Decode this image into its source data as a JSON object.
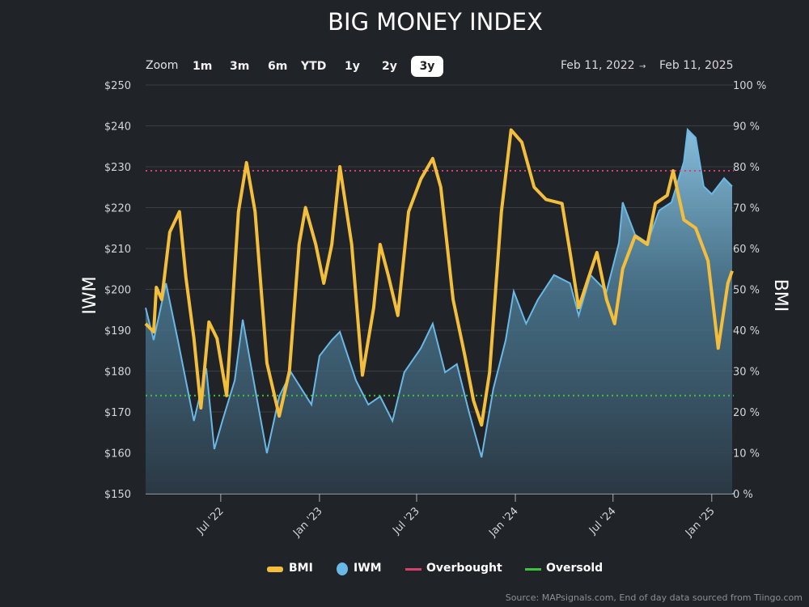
{
  "chart_data": {
    "type": "line",
    "title": "BIG MONEY INDEX",
    "xlabel": "",
    "ylabel_left": "IWM",
    "ylabel_right": "BMI",
    "ylim_left": [
      150,
      250
    ],
    "ylim_right": [
      0,
      100
    ],
    "xlim": [
      "2022-02-11",
      "2025-02-11"
    ],
    "left_ticks": [
      "$150",
      "$160",
      "$170",
      "$180",
      "$190",
      "$200",
      "$210",
      "$220",
      "$230",
      "$240",
      "$250"
    ],
    "right_ticks": [
      "0 %",
      "10 %",
      "20 %",
      "30 %",
      "40 %",
      "50 %",
      "60 %",
      "70 %",
      "80 %",
      "90 %",
      "100 %"
    ],
    "x_ticks": [
      {
        "date": "2022-07-01",
        "label": "Jul '22"
      },
      {
        "date": "2023-01-01",
        "label": "Jan '23"
      },
      {
        "date": "2023-07-01",
        "label": "Jul '23"
      },
      {
        "date": "2024-01-01",
        "label": "Jan '24"
      },
      {
        "date": "2024-07-01",
        "label": "Jul '24"
      },
      {
        "date": "2025-01-01",
        "label": "Jan '25"
      }
    ],
    "grid": true,
    "legend_position": "bottom",
    "series": [
      {
        "name": "BMI",
        "axis": "right",
        "color": "#f2be3c",
        "points": [
          [
            "2022-02-11",
            41.6
          ],
          [
            "2022-02-26",
            39.6
          ],
          [
            "2022-03-03",
            50.5
          ],
          [
            "2022-03-13",
            47.5
          ],
          [
            "2022-03-28",
            64
          ],
          [
            "2022-04-15",
            69
          ],
          [
            "2022-04-27",
            53
          ],
          [
            "2022-05-12",
            38
          ],
          [
            "2022-05-25",
            21
          ],
          [
            "2022-06-09",
            42
          ],
          [
            "2022-06-24",
            38
          ],
          [
            "2022-07-12",
            24
          ],
          [
            "2022-08-03",
            69
          ],
          [
            "2022-08-18",
            81
          ],
          [
            "2022-09-03",
            69
          ],
          [
            "2022-09-25",
            32
          ],
          [
            "2022-10-18",
            19
          ],
          [
            "2022-11-06",
            30
          ],
          [
            "2022-11-24",
            61
          ],
          [
            "2022-12-06",
            70
          ],
          [
            "2022-12-25",
            61
          ],
          [
            "2023-01-09",
            51.5
          ],
          [
            "2023-01-24",
            61
          ],
          [
            "2023-02-08",
            80
          ],
          [
            "2023-03-02",
            61
          ],
          [
            "2023-03-22",
            29
          ],
          [
            "2023-04-12",
            45.5
          ],
          [
            "2023-04-24",
            61
          ],
          [
            "2023-05-09",
            53.5
          ],
          [
            "2023-05-27",
            43.6
          ],
          [
            "2023-06-16",
            69
          ],
          [
            "2023-07-09",
            77
          ],
          [
            "2023-07-31",
            82
          ],
          [
            "2023-08-15",
            75
          ],
          [
            "2023-09-07",
            47.5
          ],
          [
            "2023-09-29",
            33.7
          ],
          [
            "2023-10-15",
            22.8
          ],
          [
            "2023-10-30",
            16.8
          ],
          [
            "2023-11-14",
            29.7
          ],
          [
            "2023-12-06",
            69
          ],
          [
            "2023-12-24",
            89
          ],
          [
            "2024-01-13",
            86
          ],
          [
            "2024-02-05",
            75
          ],
          [
            "2024-02-27",
            72
          ],
          [
            "2024-03-28",
            71
          ],
          [
            "2024-04-12",
            59
          ],
          [
            "2024-04-28",
            45.5
          ],
          [
            "2024-05-13",
            51.5
          ],
          [
            "2024-06-01",
            59
          ],
          [
            "2024-06-19",
            47.5
          ],
          [
            "2024-07-04",
            41.6
          ],
          [
            "2024-07-19",
            55
          ],
          [
            "2024-08-11",
            63
          ],
          [
            "2024-09-03",
            61
          ],
          [
            "2024-09-18",
            71
          ],
          [
            "2024-10-10",
            73
          ],
          [
            "2024-10-21",
            79
          ],
          [
            "2024-11-10",
            67
          ],
          [
            "2024-12-02",
            65
          ],
          [
            "2024-12-25",
            57
          ],
          [
            "2025-01-13",
            35.6
          ],
          [
            "2025-01-31",
            51.5
          ],
          [
            "2025-02-08",
            54.5
          ]
        ]
      },
      {
        "name": "IWM",
        "axis": "left",
        "color": "#6ab8e6",
        "points": [
          [
            "2022-02-11",
            195.5
          ],
          [
            "2022-02-26",
            187.6
          ],
          [
            "2022-03-21",
            201.5
          ],
          [
            "2022-04-12",
            187.6
          ],
          [
            "2022-05-12",
            167.8
          ],
          [
            "2022-06-04",
            180.7
          ],
          [
            "2022-06-19",
            160.9
          ],
          [
            "2022-07-04",
            167.8
          ],
          [
            "2022-07-27",
            177.7
          ],
          [
            "2022-08-11",
            192.6
          ],
          [
            "2022-09-03",
            175.7
          ],
          [
            "2022-09-25",
            159.9
          ],
          [
            "2022-10-18",
            173.8
          ],
          [
            "2022-11-09",
            179.7
          ],
          [
            "2022-12-17",
            171.8
          ],
          [
            "2023-01-01",
            183.7
          ],
          [
            "2023-01-24",
            187.6
          ],
          [
            "2023-02-08",
            189.6
          ],
          [
            "2023-03-10",
            177.7
          ],
          [
            "2023-04-02",
            171.8
          ],
          [
            "2023-04-24",
            173.8
          ],
          [
            "2023-05-17",
            167.8
          ],
          [
            "2023-06-08",
            179.7
          ],
          [
            "2023-07-09",
            185.6
          ],
          [
            "2023-07-31",
            191.6
          ],
          [
            "2023-08-23",
            179.7
          ],
          [
            "2023-09-14",
            181.7
          ],
          [
            "2023-10-07",
            169.8
          ],
          [
            "2023-10-30",
            158.9
          ],
          [
            "2023-11-21",
            175.7
          ],
          [
            "2023-12-14",
            187.6
          ],
          [
            "2023-12-29",
            199.5
          ],
          [
            "2024-01-21",
            191.6
          ],
          [
            "2024-02-12",
            197.5
          ],
          [
            "2024-03-13",
            203.5
          ],
          [
            "2024-04-12",
            201.5
          ],
          [
            "2024-04-28",
            193.6
          ],
          [
            "2024-05-20",
            203.5
          ],
          [
            "2024-06-19",
            199.5
          ],
          [
            "2024-07-12",
            211.4
          ],
          [
            "2024-07-19",
            221.3
          ],
          [
            "2024-08-11",
            213.4
          ],
          [
            "2024-09-03",
            211.4
          ],
          [
            "2024-09-25",
            219.3
          ],
          [
            "2024-10-18",
            221.3
          ],
          [
            "2024-11-10",
            231.2
          ],
          [
            "2024-11-17",
            239.1
          ],
          [
            "2024-12-02",
            237.1
          ],
          [
            "2024-12-17",
            225.2
          ],
          [
            "2025-01-01",
            223.3
          ],
          [
            "2025-01-24",
            227.2
          ],
          [
            "2025-02-08",
            225.2
          ]
        ]
      },
      {
        "name": "Overbought",
        "axis": "right",
        "color": "#d9416a",
        "value": 79
      },
      {
        "name": "Oversold",
        "axis": "right",
        "color": "#3cc43c",
        "value": 24
      }
    ]
  },
  "toolbar": {
    "zoom_label": "Zoom",
    "buttons": [
      "1m",
      "3m",
      "6m",
      "YTD",
      "1y",
      "2y",
      "3y"
    ],
    "active": "3y",
    "range_from": "Feb 11, 2022",
    "range_arrow": "→",
    "range_to": "Feb 11, 2025"
  },
  "legend": [
    "BMI",
    "IWM",
    "Overbought",
    "Oversold"
  ],
  "source": "Source: MAPsignals.com, End of day data sourced from Tiingo.com"
}
